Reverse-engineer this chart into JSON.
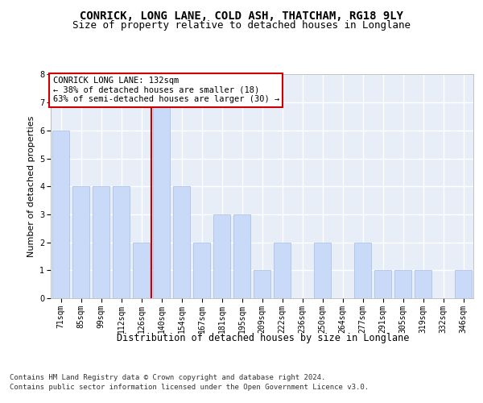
{
  "title1": "CONRICK, LONG LANE, COLD ASH, THATCHAM, RG18 9LY",
  "title2": "Size of property relative to detached houses in Longlane",
  "xlabel": "Distribution of detached houses by size in Longlane",
  "ylabel": "Number of detached properties",
  "categories": [
    "71sqm",
    "85sqm",
    "99sqm",
    "112sqm",
    "126sqm",
    "140sqm",
    "154sqm",
    "167sqm",
    "181sqm",
    "195sqm",
    "209sqm",
    "222sqm",
    "236sqm",
    "250sqm",
    "264sqm",
    "277sqm",
    "291sqm",
    "305sqm",
    "319sqm",
    "332sqm",
    "346sqm"
  ],
  "values": [
    6,
    4,
    4,
    4,
    2,
    7,
    4,
    2,
    3,
    3,
    1,
    2,
    0,
    2,
    0,
    2,
    1,
    1,
    1,
    0,
    1
  ],
  "bar_color": "#c9daf8",
  "bar_edge_color": "#a4bce8",
  "vline_color": "#cc0000",
  "vline_x": 4.5,
  "annotation_text": "CONRICK LONG LANE: 132sqm\n← 38% of detached houses are smaller (18)\n63% of semi-detached houses are larger (30) →",
  "annotation_box_color": "#ffffff",
  "annotation_box_edge": "#cc0000",
  "footer1": "Contains HM Land Registry data © Crown copyright and database right 2024.",
  "footer2": "Contains public sector information licensed under the Open Government Licence v3.0.",
  "ylim": [
    0,
    8
  ],
  "yticks": [
    0,
    1,
    2,
    3,
    4,
    5,
    6,
    7,
    8
  ],
  "bg_color": "#e8eef8",
  "title1_fontsize": 10,
  "title2_fontsize": 9,
  "xlabel_fontsize": 8.5,
  "ylabel_fontsize": 8,
  "tick_fontsize": 7,
  "annot_fontsize": 7.5,
  "footer_fontsize": 6.5
}
